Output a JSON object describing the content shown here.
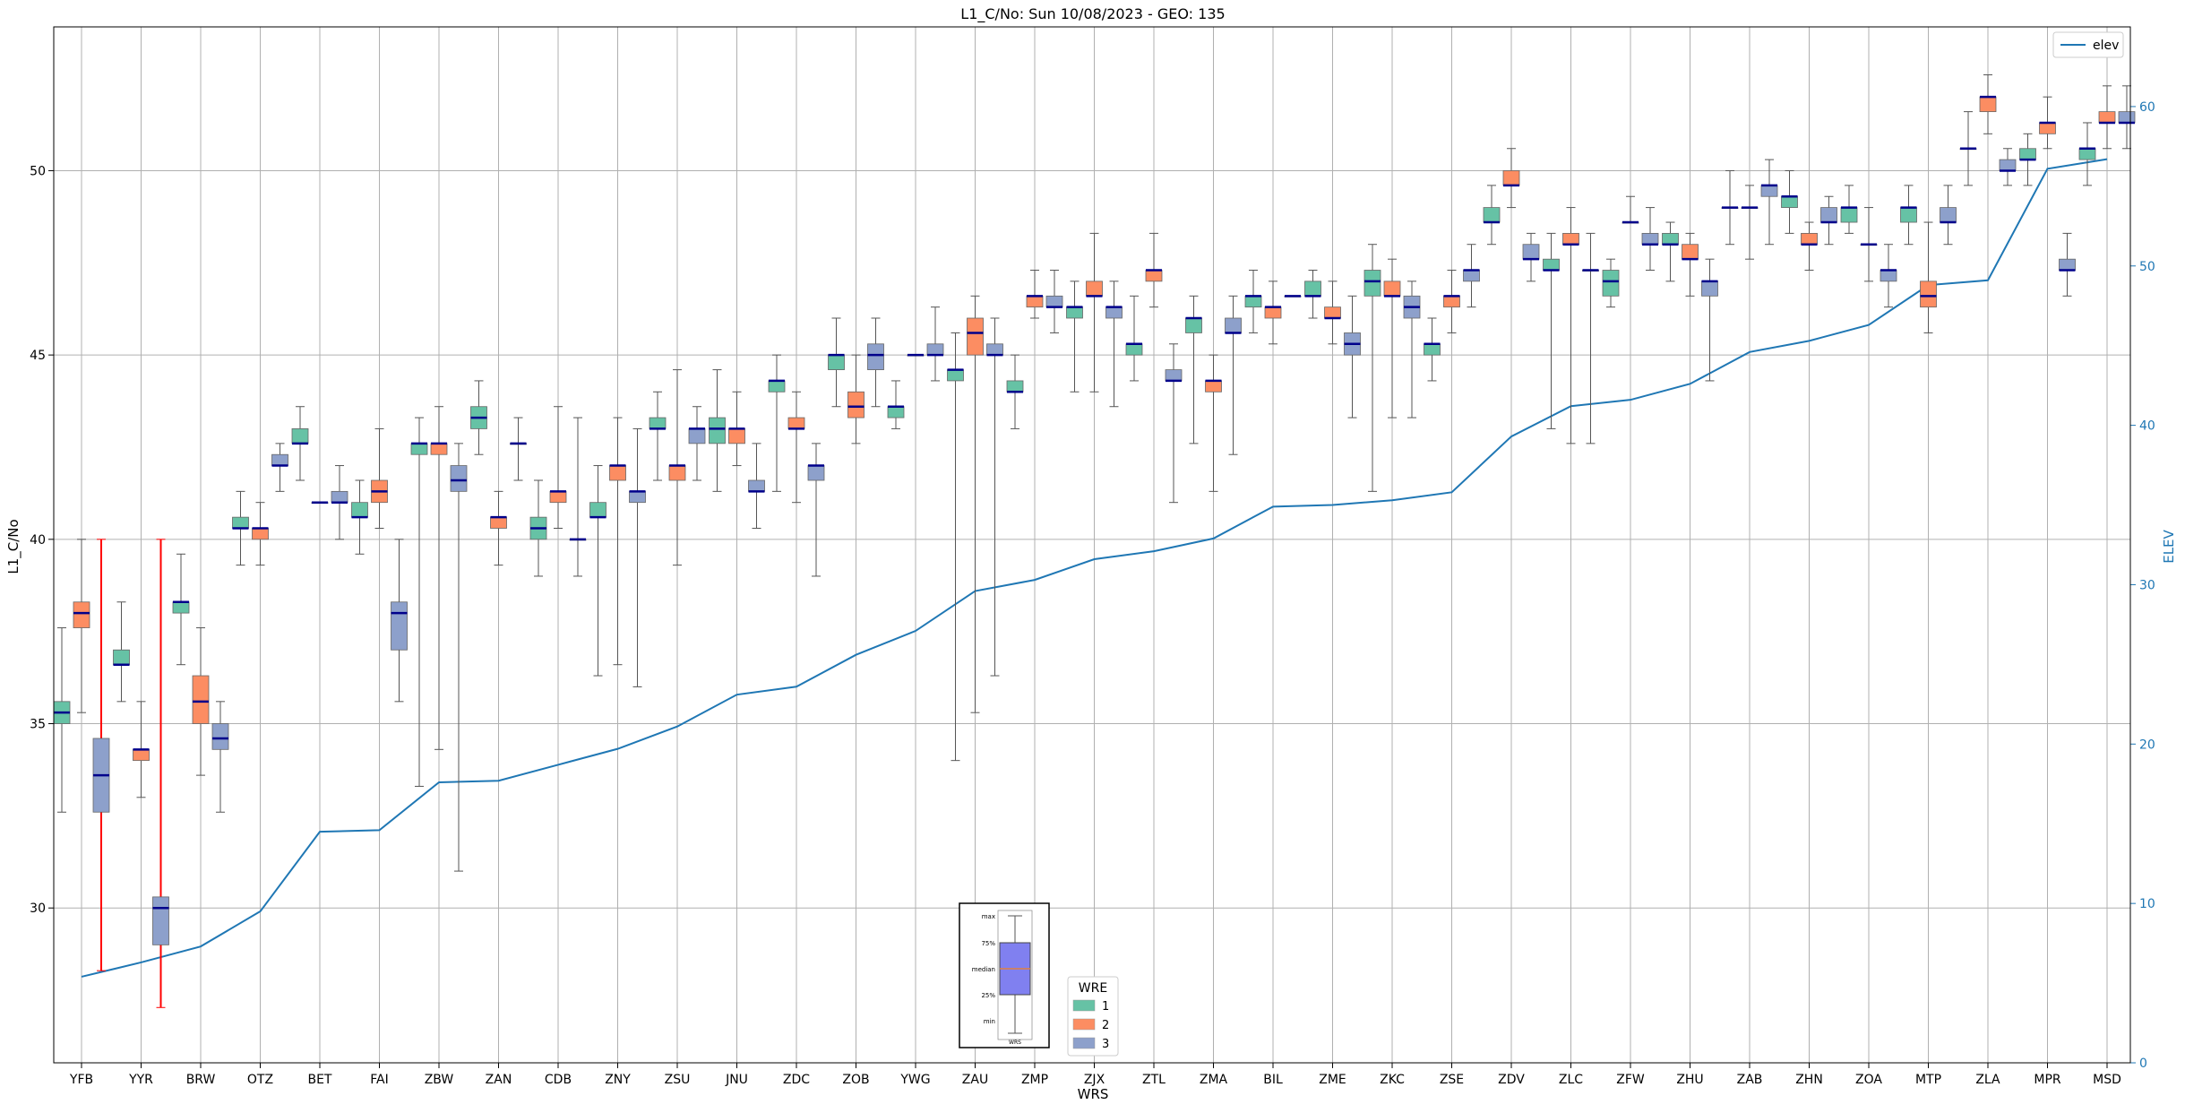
{
  "chart_data": {
    "type": "box",
    "title": "L1_C/No: Sun 10/08/2023 - GEO: 135",
    "xlabel": "WRS",
    "ylabel": "L1_C/No",
    "y2label": "ELEV",
    "ylim": [
      25.8,
      53.9
    ],
    "y2lim": [
      0,
      65
    ],
    "yticks": [
      30,
      35,
      40,
      45,
      50
    ],
    "y2ticks": [
      0,
      10,
      20,
      30,
      40,
      50,
      60
    ],
    "grid": true,
    "categories": [
      "YFB",
      "YYR",
      "BRW",
      "OTZ",
      "BET",
      "FAI",
      "ZBW",
      "ZAN",
      "CDB",
      "ZNY",
      "ZSU",
      "JNU",
      "ZDC",
      "ZOB",
      "YWG",
      "ZAU",
      "ZMP",
      "ZJX",
      "ZTL",
      "ZMA",
      "BIL",
      "ZME",
      "ZKC",
      "ZSE",
      "ZDV",
      "ZLC",
      "ZFW",
      "ZHU",
      "ZAB",
      "ZHN",
      "ZOA",
      "MTP",
      "ZLA",
      "MPR",
      "MSD"
    ],
    "wre_colors": {
      "1": "#66c2a5",
      "2": "#fc8d62",
      "3": "#8da0cb"
    },
    "median_color": "#00008b",
    "outlier_whisker_color": "#ff0000",
    "boxes": [
      {
        "cat": "YFB",
        "wre": 1,
        "min": 32.6,
        "q1": 35.0,
        "med": 35.3,
        "q3": 35.6,
        "max": 37.6
      },
      {
        "cat": "YFB",
        "wre": 2,
        "min": 35.3,
        "q1": 37.6,
        "med": 38.0,
        "q3": 38.3,
        "max": 40.0
      },
      {
        "cat": "YFB",
        "wre": 3,
        "min": 28.3,
        "q1": 32.6,
        "med": 33.6,
        "q3": 34.6,
        "max": 40.0,
        "whisker_color": "red"
      },
      {
        "cat": "YYR",
        "wre": 1,
        "min": 35.6,
        "q1": 36.6,
        "med": 36.6,
        "q3": 37.0,
        "max": 38.3
      },
      {
        "cat": "YYR",
        "wre": 2,
        "min": 33.0,
        "q1": 34.0,
        "med": 34.3,
        "q3": 34.3,
        "max": 35.6
      },
      {
        "cat": "YYR",
        "wre": 3,
        "min": 27.3,
        "q1": 29.0,
        "med": 30.0,
        "q3": 30.3,
        "max": 40.0,
        "whisker_color": "red"
      },
      {
        "cat": "BRW",
        "wre": 1,
        "min": 36.6,
        "q1": 38.0,
        "med": 38.3,
        "q3": 38.3,
        "max": 39.6
      },
      {
        "cat": "BRW",
        "wre": 2,
        "min": 33.6,
        "q1": 35.0,
        "med": 35.6,
        "q3": 36.3,
        "max": 37.6
      },
      {
        "cat": "BRW",
        "wre": 3,
        "min": 32.6,
        "q1": 34.3,
        "med": 34.6,
        "q3": 35.0,
        "max": 35.6
      },
      {
        "cat": "OTZ",
        "wre": 1,
        "min": 39.3,
        "q1": 40.3,
        "med": 40.3,
        "q3": 40.6,
        "max": 41.3
      },
      {
        "cat": "OTZ",
        "wre": 2,
        "min": 39.3,
        "q1": 40.0,
        "med": 40.3,
        "q3": 40.3,
        "max": 41.0
      },
      {
        "cat": "OTZ",
        "wre": 3,
        "min": 41.3,
        "q1": 42.0,
        "med": 42.0,
        "q3": 42.3,
        "max": 42.6
      },
      {
        "cat": "BET",
        "wre": 1,
        "min": 41.6,
        "q1": 42.6,
        "med": 42.6,
        "q3": 43.0,
        "max": 43.6
      },
      {
        "cat": "BET",
        "wre": 2,
        "min": 41.0,
        "q1": 41.0,
        "med": 41.0,
        "q3": 41.0,
        "max": 41.0
      },
      {
        "cat": "BET",
        "wre": 3,
        "min": 40.0,
        "q1": 41.0,
        "med": 41.0,
        "q3": 41.3,
        "max": 42.0
      },
      {
        "cat": "FAI",
        "wre": 1,
        "min": 39.6,
        "q1": 40.6,
        "med": 40.6,
        "q3": 41.0,
        "max": 41.6
      },
      {
        "cat": "FAI",
        "wre": 2,
        "min": 40.3,
        "q1": 41.0,
        "med": 41.3,
        "q3": 41.6,
        "max": 43.0
      },
      {
        "cat": "FAI",
        "wre": 3,
        "min": 35.6,
        "q1": 37.0,
        "med": 38.0,
        "q3": 38.3,
        "max": 40.0
      },
      {
        "cat": "ZBW",
        "wre": 1,
        "min": 33.3,
        "q1": 42.3,
        "med": 42.6,
        "q3": 42.6,
        "max": 43.3
      },
      {
        "cat": "ZBW",
        "wre": 2,
        "min": 34.3,
        "q1": 42.3,
        "med": 42.6,
        "q3": 42.6,
        "max": 43.6
      },
      {
        "cat": "ZBW",
        "wre": 3,
        "min": 31.0,
        "q1": 41.3,
        "med": 41.6,
        "q3": 42.0,
        "max": 42.6
      },
      {
        "cat": "ZAN",
        "wre": 1,
        "min": 42.3,
        "q1": 43.0,
        "med": 43.3,
        "q3": 43.6,
        "max": 44.3
      },
      {
        "cat": "ZAN",
        "wre": 2,
        "min": 39.3,
        "q1": 40.3,
        "med": 40.6,
        "q3": 40.6,
        "max": 41.3
      },
      {
        "cat": "ZAN",
        "wre": 3,
        "min": 41.6,
        "q1": 42.6,
        "med": 42.6,
        "q3": 42.6,
        "max": 43.3
      },
      {
        "cat": "CDB",
        "wre": 1,
        "min": 39.0,
        "q1": 40.0,
        "med": 40.3,
        "q3": 40.6,
        "max": 41.6
      },
      {
        "cat": "CDB",
        "wre": 2,
        "min": 40.3,
        "q1": 41.0,
        "med": 41.3,
        "q3": 41.3,
        "max": 43.6
      },
      {
        "cat": "CDB",
        "wre": 3,
        "min": 39.0,
        "q1": 40.0,
        "med": 40.0,
        "q3": 40.0,
        "max": 43.3
      },
      {
        "cat": "ZNY",
        "wre": 1,
        "min": 36.3,
        "q1": 40.6,
        "med": 40.6,
        "q3": 41.0,
        "max": 42.0
      },
      {
        "cat": "ZNY",
        "wre": 2,
        "min": 36.6,
        "q1": 41.6,
        "med": 42.0,
        "q3": 42.0,
        "max": 43.3
      },
      {
        "cat": "ZNY",
        "wre": 3,
        "min": 36.0,
        "q1": 41.0,
        "med": 41.3,
        "q3": 41.3,
        "max": 43.0
      },
      {
        "cat": "ZSU",
        "wre": 1,
        "min": 41.6,
        "q1": 43.0,
        "med": 43.0,
        "q3": 43.3,
        "max": 44.0
      },
      {
        "cat": "ZSU",
        "wre": 2,
        "min": 39.3,
        "q1": 41.6,
        "med": 42.0,
        "q3": 42.0,
        "max": 44.6
      },
      {
        "cat": "ZSU",
        "wre": 3,
        "min": 41.6,
        "q1": 42.6,
        "med": 43.0,
        "q3": 43.0,
        "max": 43.6
      },
      {
        "cat": "JNU",
        "wre": 1,
        "min": 41.3,
        "q1": 42.6,
        "med": 43.0,
        "q3": 43.3,
        "max": 44.6
      },
      {
        "cat": "JNU",
        "wre": 2,
        "min": 42.0,
        "q1": 42.6,
        "med": 43.0,
        "q3": 43.0,
        "max": 44.0
      },
      {
        "cat": "JNU",
        "wre": 3,
        "min": 40.3,
        "q1": 41.3,
        "med": 41.3,
        "q3": 41.6,
        "max": 42.6
      },
      {
        "cat": "ZDC",
        "wre": 1,
        "min": 41.3,
        "q1": 44.0,
        "med": 44.3,
        "q3": 44.3,
        "max": 45.0
      },
      {
        "cat": "ZDC",
        "wre": 2,
        "min": 41.0,
        "q1": 43.0,
        "med": 43.0,
        "q3": 43.3,
        "max": 44.0
      },
      {
        "cat": "ZDC",
        "wre": 3,
        "min": 39.0,
        "q1": 41.6,
        "med": 42.0,
        "q3": 42.0,
        "max": 42.6
      },
      {
        "cat": "ZOB",
        "wre": 1,
        "min": 43.6,
        "q1": 44.6,
        "med": 45.0,
        "q3": 45.0,
        "max": 46.0
      },
      {
        "cat": "ZOB",
        "wre": 2,
        "min": 42.6,
        "q1": 43.3,
        "med": 43.6,
        "q3": 44.0,
        "max": 45.0
      },
      {
        "cat": "ZOB",
        "wre": 3,
        "min": 43.6,
        "q1": 44.6,
        "med": 45.0,
        "q3": 45.3,
        "max": 46.0
      },
      {
        "cat": "YWG",
        "wre": 1,
        "min": 43.0,
        "q1": 43.3,
        "med": 43.6,
        "q3": 43.6,
        "max": 44.3
      },
      {
        "cat": "YWG",
        "wre": 2,
        "min": 45.0,
        "q1": 45.0,
        "med": 45.0,
        "q3": 45.0,
        "max": 45.0
      },
      {
        "cat": "YWG",
        "wre": 3,
        "min": 44.3,
        "q1": 45.0,
        "med": 45.0,
        "q3": 45.3,
        "max": 46.3
      },
      {
        "cat": "ZAU",
        "wre": 1,
        "min": 34.0,
        "q1": 44.3,
        "med": 44.6,
        "q3": 44.6,
        "max": 45.6
      },
      {
        "cat": "ZAU",
        "wre": 2,
        "min": 35.3,
        "q1": 45.0,
        "med": 45.6,
        "q3": 46.0,
        "max": 46.6
      },
      {
        "cat": "ZAU",
        "wre": 3,
        "min": 36.3,
        "q1": 45.0,
        "med": 45.0,
        "q3": 45.3,
        "max": 46.0
      },
      {
        "cat": "ZMP",
        "wre": 1,
        "min": 43.0,
        "q1": 44.0,
        "med": 44.0,
        "q3": 44.3,
        "max": 45.0
      },
      {
        "cat": "ZMP",
        "wre": 2,
        "min": 46.0,
        "q1": 46.3,
        "med": 46.6,
        "q3": 46.6,
        "max": 47.3
      },
      {
        "cat": "ZMP",
        "wre": 3,
        "min": 45.6,
        "q1": 46.3,
        "med": 46.3,
        "q3": 46.6,
        "max": 47.3
      },
      {
        "cat": "ZJX",
        "wre": 1,
        "min": 44.0,
        "q1": 46.0,
        "med": 46.3,
        "q3": 46.3,
        "max": 47.0
      },
      {
        "cat": "ZJX",
        "wre": 2,
        "min": 44.0,
        "q1": 46.6,
        "med": 46.6,
        "q3": 47.0,
        "max": 48.3
      },
      {
        "cat": "ZJX",
        "wre": 3,
        "min": 43.6,
        "q1": 46.0,
        "med": 46.3,
        "q3": 46.3,
        "max": 47.0
      },
      {
        "cat": "ZTL",
        "wre": 1,
        "min": 44.3,
        "q1": 45.0,
        "med": 45.3,
        "q3": 45.3,
        "max": 46.6
      },
      {
        "cat": "ZTL",
        "wre": 2,
        "min": 46.3,
        "q1": 47.0,
        "med": 47.3,
        "q3": 47.3,
        "max": 48.3
      },
      {
        "cat": "ZTL",
        "wre": 3,
        "min": 41.0,
        "q1": 44.3,
        "med": 44.3,
        "q3": 44.6,
        "max": 45.3
      },
      {
        "cat": "ZMA",
        "wre": 1,
        "min": 42.6,
        "q1": 45.6,
        "med": 46.0,
        "q3": 46.0,
        "max": 46.6
      },
      {
        "cat": "ZMA",
        "wre": 2,
        "min": 41.3,
        "q1": 44.0,
        "med": 44.3,
        "q3": 44.3,
        "max": 45.0
      },
      {
        "cat": "ZMA",
        "wre": 3,
        "min": 42.3,
        "q1": 45.6,
        "med": 45.6,
        "q3": 46.0,
        "max": 46.6
      },
      {
        "cat": "BIL",
        "wre": 1,
        "min": 45.6,
        "q1": 46.3,
        "med": 46.6,
        "q3": 46.6,
        "max": 47.3
      },
      {
        "cat": "BIL",
        "wre": 2,
        "min": 45.3,
        "q1": 46.0,
        "med": 46.3,
        "q3": 46.3,
        "max": 47.0
      },
      {
        "cat": "BIL",
        "wre": 3,
        "min": 46.6,
        "q1": 46.6,
        "med": 46.6,
        "q3": 46.6,
        "max": 46.6
      },
      {
        "cat": "ZME",
        "wre": 1,
        "min": 46.0,
        "q1": 46.6,
        "med": 46.6,
        "q3": 47.0,
        "max": 47.3
      },
      {
        "cat": "ZME",
        "wre": 2,
        "min": 45.3,
        "q1": 46.0,
        "med": 46.0,
        "q3": 46.3,
        "max": 47.0
      },
      {
        "cat": "ZME",
        "wre": 3,
        "min": 43.3,
        "q1": 45.0,
        "med": 45.3,
        "q3": 45.6,
        "max": 46.6
      },
      {
        "cat": "ZKC",
        "wre": 1,
        "min": 41.3,
        "q1": 46.6,
        "med": 47.0,
        "q3": 47.3,
        "max": 48.0
      },
      {
        "cat": "ZKC",
        "wre": 2,
        "min": 43.3,
        "q1": 46.6,
        "med": 46.6,
        "q3": 47.0,
        "max": 47.6
      },
      {
        "cat": "ZKC",
        "wre": 3,
        "min": 43.3,
        "q1": 46.0,
        "med": 46.3,
        "q3": 46.6,
        "max": 47.0
      },
      {
        "cat": "ZSE",
        "wre": 1,
        "min": 44.3,
        "q1": 45.0,
        "med": 45.3,
        "q3": 45.3,
        "max": 46.0
      },
      {
        "cat": "ZSE",
        "wre": 2,
        "min": 45.6,
        "q1": 46.3,
        "med": 46.6,
        "q3": 46.6,
        "max": 47.3
      },
      {
        "cat": "ZSE",
        "wre": 3,
        "min": 46.3,
        "q1": 47.0,
        "med": 47.3,
        "q3": 47.3,
        "max": 48.0
      },
      {
        "cat": "ZDV",
        "wre": 1,
        "min": 48.0,
        "q1": 48.6,
        "med": 48.6,
        "q3": 49.0,
        "max": 49.6
      },
      {
        "cat": "ZDV",
        "wre": 2,
        "min": 49.0,
        "q1": 49.6,
        "med": 49.6,
        "q3": 50.0,
        "max": 50.6
      },
      {
        "cat": "ZDV",
        "wre": 3,
        "min": 47.0,
        "q1": 47.6,
        "med": 47.6,
        "q3": 48.0,
        "max": 48.3
      },
      {
        "cat": "ZLC",
        "wre": 1,
        "min": 43.0,
        "q1": 47.3,
        "med": 47.3,
        "q3": 47.6,
        "max": 48.3
      },
      {
        "cat": "ZLC",
        "wre": 2,
        "min": 42.6,
        "q1": 48.0,
        "med": 48.0,
        "q3": 48.3,
        "max": 49.0
      },
      {
        "cat": "ZLC",
        "wre": 3,
        "min": 42.6,
        "q1": 47.3,
        "med": 47.3,
        "q3": 47.3,
        "max": 48.3
      },
      {
        "cat": "ZFW",
        "wre": 1,
        "min": 46.3,
        "q1": 46.6,
        "med": 47.0,
        "q3": 47.3,
        "max": 47.6
      },
      {
        "cat": "ZFW",
        "wre": 2,
        "min": 48.6,
        "q1": 48.6,
        "med": 48.6,
        "q3": 48.6,
        "max": 49.3
      },
      {
        "cat": "ZFW",
        "wre": 3,
        "min": 47.3,
        "q1": 48.0,
        "med": 48.0,
        "q3": 48.3,
        "max": 49.0
      },
      {
        "cat": "ZHU",
        "wre": 1,
        "min": 47.0,
        "q1": 48.0,
        "med": 48.0,
        "q3": 48.3,
        "max": 48.6
      },
      {
        "cat": "ZHU",
        "wre": 2,
        "min": 46.6,
        "q1": 47.6,
        "med": 47.6,
        "q3": 48.0,
        "max": 48.3
      },
      {
        "cat": "ZHU",
        "wre": 3,
        "min": 44.3,
        "q1": 46.6,
        "med": 47.0,
        "q3": 47.0,
        "max": 47.6
      },
      {
        "cat": "ZAB",
        "wre": 1,
        "min": 48.0,
        "q1": 49.0,
        "med": 49.0,
        "q3": 49.0,
        "max": 50.0
      },
      {
        "cat": "ZAB",
        "wre": 2,
        "min": 47.6,
        "q1": 49.0,
        "med": 49.0,
        "q3": 49.0,
        "max": 49.6
      },
      {
        "cat": "ZAB",
        "wre": 3,
        "min": 48.0,
        "q1": 49.3,
        "med": 49.6,
        "q3": 49.6,
        "max": 50.3
      },
      {
        "cat": "ZHN",
        "wre": 1,
        "min": 48.3,
        "q1": 49.0,
        "med": 49.3,
        "q3": 49.3,
        "max": 50.0
      },
      {
        "cat": "ZHN",
        "wre": 2,
        "min": 47.3,
        "q1": 48.0,
        "med": 48.0,
        "q3": 48.3,
        "max": 48.6
      },
      {
        "cat": "ZHN",
        "wre": 3,
        "min": 48.0,
        "q1": 48.6,
        "med": 48.6,
        "q3": 49.0,
        "max": 49.3
      },
      {
        "cat": "ZOA",
        "wre": 1,
        "min": 48.3,
        "q1": 48.6,
        "med": 49.0,
        "q3": 49.0,
        "max": 49.6
      },
      {
        "cat": "ZOA",
        "wre": 2,
        "min": 47.0,
        "q1": 48.0,
        "med": 48.0,
        "q3": 48.0,
        "max": 49.0
      },
      {
        "cat": "ZOA",
        "wre": 3,
        "min": 46.3,
        "q1": 47.0,
        "med": 47.3,
        "q3": 47.3,
        "max": 48.0
      },
      {
        "cat": "MTP",
        "wre": 1,
        "min": 48.0,
        "q1": 48.6,
        "med": 49.0,
        "q3": 49.0,
        "max": 49.6
      },
      {
        "cat": "MTP",
        "wre": 2,
        "min": 45.6,
        "q1": 46.3,
        "med": 46.6,
        "q3": 47.0,
        "max": 48.6
      },
      {
        "cat": "MTP",
        "wre": 3,
        "min": 48.0,
        "q1": 48.6,
        "med": 48.6,
        "q3": 49.0,
        "max": 49.6
      },
      {
        "cat": "ZLA",
        "wre": 1,
        "min": 49.6,
        "q1": 50.6,
        "med": 50.6,
        "q3": 50.6,
        "max": 51.6
      },
      {
        "cat": "ZLA",
        "wre": 2,
        "min": 51.0,
        "q1": 51.6,
        "med": 52.0,
        "q3": 52.0,
        "max": 52.6
      },
      {
        "cat": "ZLA",
        "wre": 3,
        "min": 49.6,
        "q1": 50.0,
        "med": 50.0,
        "q3": 50.3,
        "max": 50.6
      },
      {
        "cat": "MPR",
        "wre": 1,
        "min": 49.6,
        "q1": 50.3,
        "med": 50.3,
        "q3": 50.6,
        "max": 51.0
      },
      {
        "cat": "MPR",
        "wre": 2,
        "min": 50.6,
        "q1": 51.0,
        "med": 51.3,
        "q3": 51.3,
        "max": 52.0
      },
      {
        "cat": "MPR",
        "wre": 3,
        "min": 46.6,
        "q1": 47.3,
        "med": 47.3,
        "q3": 47.6,
        "max": 48.3
      },
      {
        "cat": "MSD",
        "wre": 1,
        "min": 49.6,
        "q1": 50.3,
        "med": 50.6,
        "q3": 50.6,
        "max": 51.3
      },
      {
        "cat": "MSD",
        "wre": 2,
        "min": 50.6,
        "q1": 51.3,
        "med": 51.3,
        "q3": 51.6,
        "max": 52.3
      },
      {
        "cat": "MSD",
        "wre": 3,
        "min": 50.6,
        "q1": 51.3,
        "med": 51.3,
        "q3": 51.6,
        "max": 52.3
      }
    ],
    "elev_series": {
      "name": "elev",
      "color": "#1f77b4",
      "values": [
        5.4,
        6.3,
        7.3,
        9.5,
        14.5,
        14.6,
        17.6,
        17.7,
        18.7,
        19.7,
        21.1,
        23.1,
        23.6,
        25.6,
        27.1,
        29.6,
        30.3,
        31.6,
        32.1,
        32.9,
        34.9,
        35.0,
        35.3,
        35.8,
        39.3,
        41.2,
        41.6,
        42.6,
        44.6,
        45.3,
        46.3,
        48.8,
        49.1,
        56.1,
        56.7
      ]
    },
    "legend_elev": {
      "label": "elev",
      "location": "top-right"
    },
    "legend_wre": {
      "title": "WRE",
      "entries": [
        "1",
        "2",
        "3"
      ],
      "location": "bottom-center"
    },
    "inset_key": {
      "labels": [
        "max",
        "75%",
        "median",
        "25%",
        "min"
      ],
      "box_label": "WRS",
      "box_color": "#8080f0"
    }
  }
}
